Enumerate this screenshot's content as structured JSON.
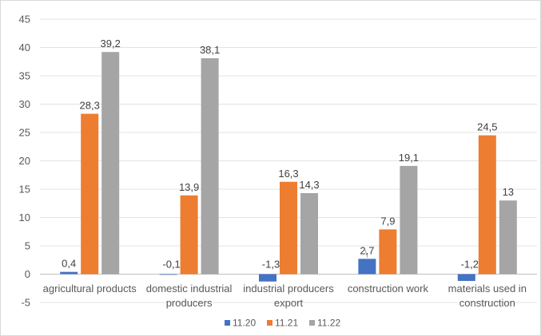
{
  "chart_data": {
    "type": "bar",
    "categories": [
      [
        "agricultural products"
      ],
      [
        "domestic industrial",
        "producers"
      ],
      [
        "industrial producers",
        "export"
      ],
      [
        "construction work"
      ],
      [
        "materials used in",
        "construction"
      ]
    ],
    "series": [
      {
        "name": "11.20",
        "color": "#4472c4",
        "values": [
          0.4,
          -0.1,
          -1.3,
          2.7,
          -1.2
        ],
        "labels": [
          "0,4",
          "-0,1",
          "-1,3",
          "2,7",
          "-1,2"
        ]
      },
      {
        "name": "11.21",
        "color": "#ed7d31",
        "values": [
          28.3,
          13.9,
          16.3,
          7.9,
          24.5
        ],
        "labels": [
          "28,3",
          "13,9",
          "16,3",
          "7,9",
          "24,5"
        ]
      },
      {
        "name": "11.22",
        "color": "#a5a5a5",
        "values": [
          39.2,
          38.1,
          14.3,
          19.1,
          13
        ],
        "labels": [
          "39,2",
          "38,1",
          "14,3",
          "19,1",
          "13"
        ]
      }
    ],
    "ylim": [
      -5,
      45
    ],
    "yticks": [
      -5,
      0,
      5,
      10,
      15,
      20,
      25,
      30,
      35,
      40,
      45
    ],
    "grid": true,
    "legend": "bottom",
    "title": "",
    "xlabel": "",
    "ylabel": ""
  }
}
